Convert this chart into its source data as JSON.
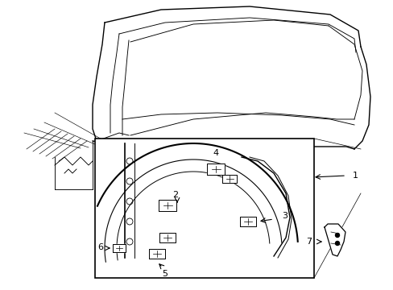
{
  "bg_color": "#ffffff",
  "line_color": "#000000",
  "figsize": [
    4.89,
    3.6
  ],
  "dpi": 100,
  "font_size_labels": 8
}
